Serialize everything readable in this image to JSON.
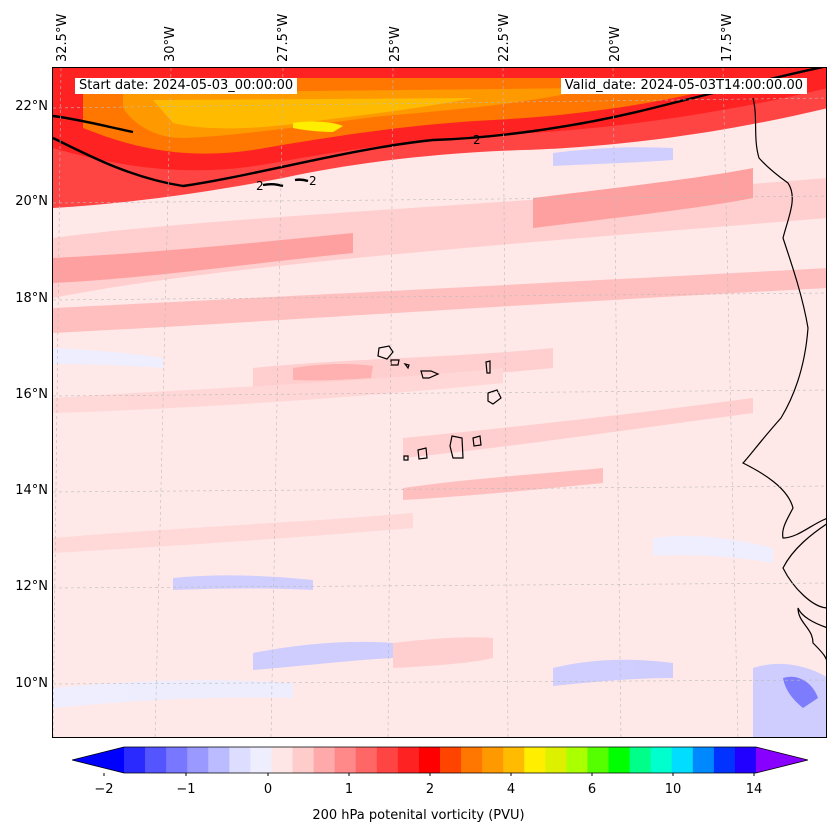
{
  "header": {
    "start_date": "Start date: 2024-05-03_00:00:00",
    "valid_date": "Valid_date: 2024-05-03T14:00:00.00"
  },
  "axes": {
    "lon_labels": [
      "32.5°W",
      "30°W",
      "27.5°W",
      "25°W",
      "22.5°W",
      "20°W",
      "17.5°W"
    ],
    "lat_labels": [
      "22°N",
      "20°N",
      "18°N",
      "16°N",
      "14°N",
      "12°N",
      "10°N"
    ],
    "contour_label": "2"
  },
  "colorbar": {
    "label": "200 hPa potenital vorticity (PVU)",
    "ticks": [
      "−2",
      "−1",
      "0",
      "1",
      "2",
      "4",
      "6",
      "10",
      "14"
    ],
    "colors": [
      "#0000ff",
      "#2a2aff",
      "#5555ff",
      "#7777ff",
      "#9999ff",
      "#bbbbff",
      "#ddddff",
      "#eeeeff",
      "#ffe6e6",
      "#ffcccc",
      "#ffaaaa",
      "#ff8888",
      "#ff6666",
      "#ff4444",
      "#ff2222",
      "#ff0000",
      "#ff4400",
      "#ff7700",
      "#ff9900",
      "#ffbb00",
      "#ffee00",
      "#ddf000",
      "#aaff00",
      "#55ff00",
      "#00ff00",
      "#00ff88",
      "#00ffcc",
      "#00ddff",
      "#0088ff",
      "#0033ff",
      "#2200ff",
      "#8800ff"
    ]
  },
  "map_colors": {
    "ocean_base": "#ffe8e8",
    "jet_outer": "#ff2222",
    "jet_mid": "#ff7700",
    "jet_core": "#ffbb00",
    "jet_peak": "#ffee00",
    "pink_band": "#ffaaaa",
    "blue_patch": "#ccccff",
    "coast": "#000000"
  }
}
